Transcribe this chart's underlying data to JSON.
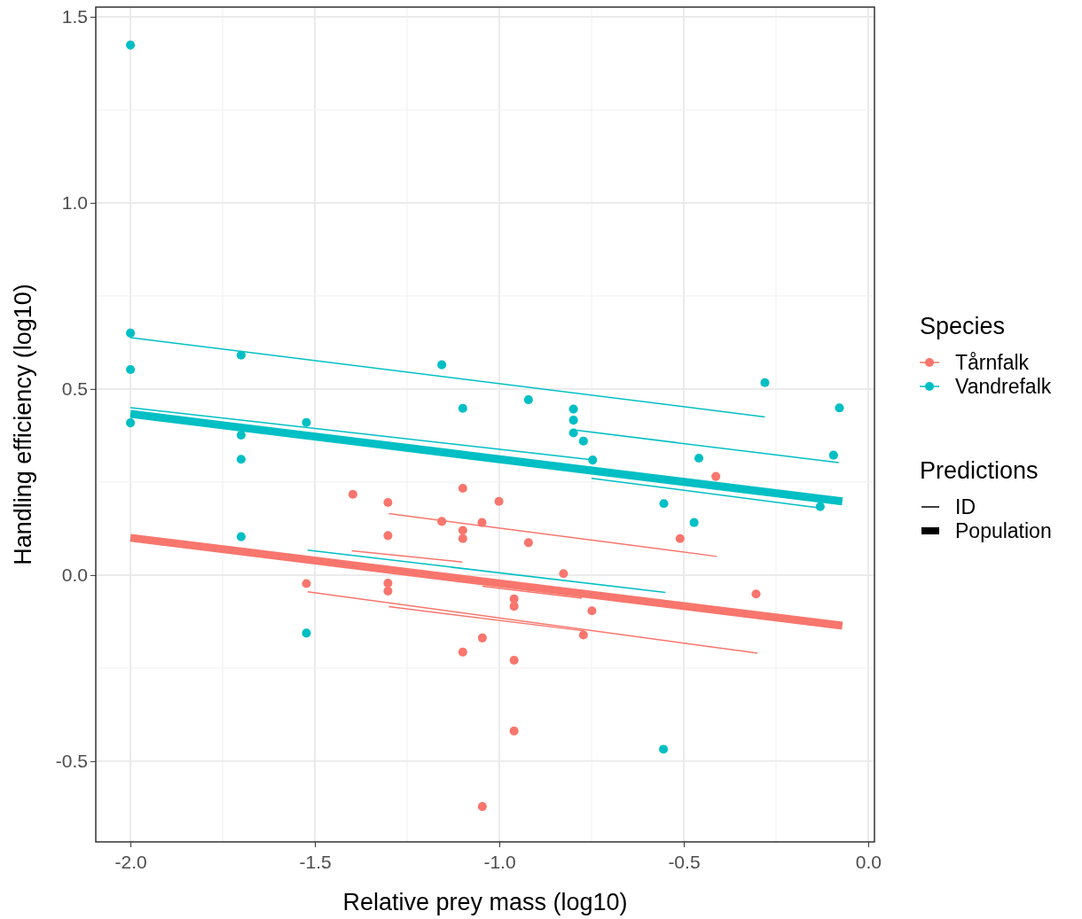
{
  "chart_data": {
    "type": "scatter",
    "xlabel": "Relative prey mass (log10)",
    "ylabel": "Handling efficiency (log10)",
    "xlim": [
      -2.094,
      0.017
    ],
    "ylim": [
      -0.717,
      1.526
    ],
    "xticks": [
      {
        "value": -2.0,
        "label": "-2.0"
      },
      {
        "value": -1.5,
        "label": "-1.5"
      },
      {
        "value": -1.0,
        "label": "-1.0"
      },
      {
        "value": -0.5,
        "label": "-0.5"
      },
      {
        "value": 0.0,
        "label": "0.0"
      }
    ],
    "yticks": [
      {
        "value": -0.5,
        "label": "-0.5"
      },
      {
        "value": 0.0,
        "label": "0.0"
      },
      {
        "value": 0.5,
        "label": "0.5"
      },
      {
        "value": 1.0,
        "label": "1.0"
      },
      {
        "value": 1.5,
        "label": "1.5"
      }
    ],
    "grid": true,
    "legend": "right",
    "legend_title": "Species",
    "marker": "circle",
    "annotations": [
      "Predictions",
      "ID",
      "Population"
    ],
    "series": [
      {
        "type": "line",
        "marker": "none",
        "color": "#00bfc4",
        "x": [
          -2.0,
          -0.28
        ],
        "values": [
          0.638,
          0.425
        ]
      },
      {
        "type": "line",
        "marker": "none",
        "color": "#00bfc4",
        "x": [
          -2.0,
          -0.75
        ],
        "values": [
          0.45,
          0.31
        ]
      },
      {
        "type": "line",
        "marker": "none",
        "color": "#00bfc4",
        "x": [
          -0.8,
          -0.08
        ],
        "values": [
          0.39,
          0.302
        ]
      },
      {
        "type": "line",
        "marker": "none",
        "color": "#00bfc4",
        "x": [
          -0.75,
          -0.13
        ],
        "values": [
          0.26,
          0.18
        ]
      },
      {
        "type": "line",
        "marker": "none",
        "color": "#00bfc4",
        "x": [
          -1.52,
          -0.55
        ],
        "values": [
          0.067,
          -0.047
        ]
      },
      {
        "type": "line",
        "marker": "none",
        "color": "#f8766d",
        "x": [
          -1.3,
          -0.41
        ],
        "values": [
          0.165,
          0.05
        ]
      },
      {
        "type": "line",
        "marker": "none",
        "color": "#f8766d",
        "x": [
          -1.4,
          -1.1
        ],
        "values": [
          0.065,
          0.035
        ]
      },
      {
        "type": "line",
        "marker": "none",
        "color": "#f8766d",
        "x": [
          -1.52,
          -0.3
        ],
        "values": [
          -0.045,
          -0.21
        ]
      },
      {
        "type": "line",
        "marker": "none",
        "color": "#f8766d",
        "x": [
          -1.3,
          -0.77
        ],
        "values": [
          -0.085,
          -0.15
        ]
      },
      {
        "type": "line",
        "marker": "none",
        "color": "#f8766d",
        "x": [
          -1.046,
          -0.776
        ],
        "values": [
          -0.03,
          -0.062
        ]
      },
      {
        "type": "line",
        "marker": "none",
        "color": "#00bfc4",
        "x": [
          -2.0,
          -0.07
        ],
        "values": [
          0.433,
          0.198
        ]
      },
      {
        "type": "line",
        "marker": "none",
        "color": "#f8766d",
        "x": [
          -2.0,
          -0.07
        ],
        "values": [
          0.1,
          -0.136
        ]
      },
      {
        "name": "Tårnfalk",
        "color": "#f8766d",
        "x": [
          -1.397,
          -1.302,
          -1.156,
          -1.099,
          -1.099,
          -1.099,
          -1.047,
          -1.302,
          -1.523,
          -1.302,
          -1.302,
          -1.001,
          -0.921,
          -0.826,
          -0.51,
          -0.413,
          -0.304,
          -0.96,
          -0.96,
          -0.749,
          -0.772,
          -1.046,
          -1.099,
          -0.96,
          -0.96,
          -1.046
        ],
        "values": [
          0.217,
          0.195,
          0.144,
          0.233,
          0.12,
          0.098,
          0.141,
          0.106,
          -0.023,
          -0.022,
          -0.043,
          0.198,
          0.087,
          0.004,
          0.098,
          0.265,
          -0.051,
          -0.064,
          -0.084,
          -0.096,
          -0.161,
          -0.169,
          -0.207,
          -0.229,
          -0.419,
          -0.622
        ]
      },
      {
        "name": "Vandrefalk",
        "color": "#00bfc4",
        "x": [
          -2.0,
          -2.0,
          -2.0,
          -2.0,
          -1.7,
          -1.7,
          -1.7,
          -1.7,
          -1.523,
          -1.523,
          -1.156,
          -1.099,
          -0.921,
          -0.799,
          -0.799,
          -0.799,
          -0.772,
          -0.747,
          -0.28,
          -0.078,
          -0.094,
          -0.13,
          -0.459,
          -0.554,
          -0.472,
          -0.555
        ],
        "values": [
          1.424,
          0.65,
          0.552,
          0.409,
          0.591,
          0.376,
          0.311,
          0.103,
          0.41,
          -0.156,
          0.565,
          0.448,
          0.471,
          0.446,
          0.416,
          0.382,
          0.36,
          0.309,
          0.517,
          0.449,
          0.322,
          0.184,
          0.314,
          0.192,
          0.141,
          -0.468
        ]
      }
    ]
  }
}
